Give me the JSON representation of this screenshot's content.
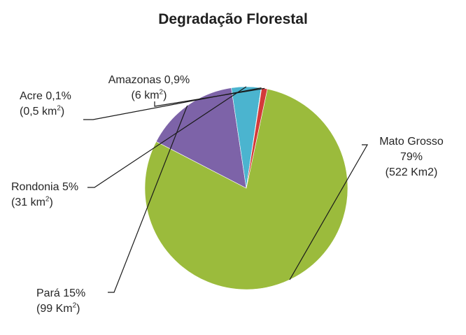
{
  "chart_data": {
    "type": "pie",
    "title": "Degradação Florestal",
    "colors": {
      "Mato Grosso": "#9bbb3c",
      "Pará": "#7d63a8",
      "Rondonia": "#4bb4cf",
      "Acre": "#2f6fb0",
      "Amazonas": "#d33a3a"
    },
    "slices": [
      {
        "name": "Mato Grosso",
        "value": 522,
        "percent": 79,
        "label_line1": "Mato Grosso",
        "label_line2": "79%",
        "label_line3": "(522 Km2)"
      },
      {
        "name": "Pará",
        "value": 99,
        "percent": 15,
        "label_line1": "Pará 15%",
        "label_line2": "(99 Km",
        "label_sup": "2",
        "label_suffix": ")"
      },
      {
        "name": "Rondonia",
        "value": 31,
        "percent": 5,
        "label_line1": "Rondonia 5%",
        "label_line2": "(31 km",
        "label_sup": "2",
        "label_suffix": ")"
      },
      {
        "name": "Acre",
        "value": 0.5,
        "percent": 0.1,
        "label_line1": "Acre 0,1%",
        "label_line2": "(0,5 km",
        "label_sup": "2",
        "label_suffix": ")"
      },
      {
        "name": "Amazonas",
        "value": 6,
        "percent": 0.9,
        "label_line1": "Amazonas 0,9%",
        "label_line2": "(6 km",
        "label_sup": "2",
        "label_suffix": ")"
      }
    ]
  }
}
